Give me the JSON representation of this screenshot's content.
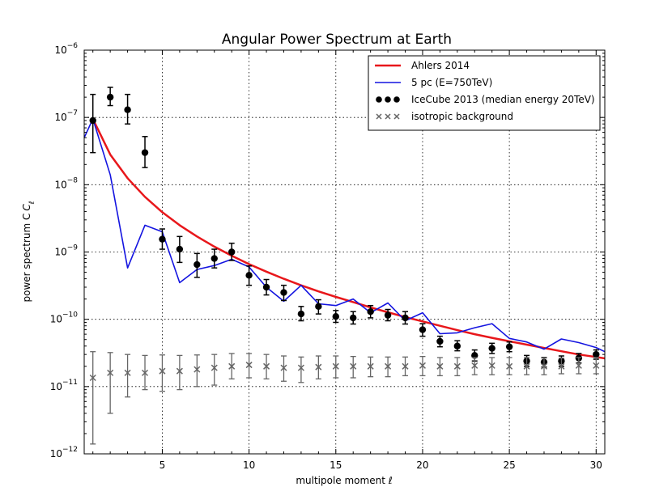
{
  "chart_data": {
    "type": "scatter",
    "title": "Angular Power Spectrum at Earth",
    "xlabel": "multipole moment ℓ",
    "ylabel": "power spectrum C",
    "ylabel_subscript": "ℓ",
    "xlim": [
      0.5,
      30.5
    ],
    "ylim_exponents": [
      -12,
      -6
    ],
    "yscale": "log",
    "grid": true,
    "legend_position": "top-right",
    "x_ticks": [
      5,
      10,
      15,
      20,
      25,
      30
    ],
    "y_tick_exponents": [
      -12,
      -11,
      -10,
      -9,
      -8,
      -7,
      -6
    ],
    "y_tick_base": "10",
    "series": [
      {
        "name": "Ahlers 2014",
        "kind": "line",
        "color": "#e8171b",
        "x": [
          1,
          2,
          3,
          4,
          5,
          6,
          7,
          8,
          9,
          10,
          11,
          12,
          13,
          14,
          15,
          16,
          17,
          18,
          19,
          20,
          21,
          22,
          23,
          24,
          25,
          26,
          27,
          28,
          29,
          30,
          30.5
        ],
        "y": [
          9.5e-08,
          2.8e-08,
          1.25e-08,
          6.6e-09,
          3.9e-09,
          2.5e-09,
          1.7e-09,
          1.2e-09,
          8.8e-10,
          6.6e-10,
          5.1e-10,
          4e-10,
          3.2e-10,
          2.6e-10,
          2.15e-10,
          1.8e-10,
          1.5e-10,
          1.27e-10,
          1.08e-10,
          9.3e-11,
          8e-11,
          6.9e-11,
          6e-11,
          5.3e-11,
          4.7e-11,
          4.2e-11,
          3.75e-11,
          3.35e-11,
          3e-11,
          2.75e-11,
          2.62e-11
        ]
      },
      {
        "name": "5 pc (E=750TeV)",
        "kind": "line",
        "color": "#1414e0",
        "x": [
          0.5,
          1,
          2,
          3,
          4,
          5,
          6,
          7,
          8,
          9,
          10,
          11,
          12,
          13,
          14,
          15,
          16,
          17,
          18,
          19,
          20,
          21,
          22,
          23,
          24,
          25,
          26,
          27,
          28,
          29,
          30,
          30.5
        ],
        "y": [
          5e-08,
          9.5e-08,
          1.4e-08,
          5.8e-10,
          2.5e-09,
          2e-09,
          3.5e-10,
          5.5e-10,
          6.3e-10,
          7.8e-10,
          6e-10,
          3e-10,
          1.85e-10,
          3.2e-10,
          1.7e-10,
          1.6e-10,
          2e-10,
          1.25e-10,
          1.75e-10,
          9.5e-11,
          1.25e-10,
          6.1e-11,
          6.3e-11,
          7.5e-11,
          8.6e-11,
          5.2e-11,
          4.6e-11,
          3.6e-11,
          5.1e-11,
          4.5e-11,
          3.8e-11,
          3.3e-11
        ]
      },
      {
        "name": "IceCube 2013 (median energy 20TeV)",
        "kind": "points_errorbars",
        "color": "#000000",
        "x": [
          1,
          2,
          3,
          4,
          5,
          6,
          7,
          8,
          9,
          10,
          11,
          12,
          13,
          14,
          15,
          16,
          17,
          18,
          19,
          20,
          21,
          22,
          23,
          24,
          25,
          26,
          27,
          28,
          29,
          30
        ],
        "y": [
          9e-08,
          2e-07,
          1.3e-07,
          3e-08,
          1.55e-09,
          1.1e-09,
          6.5e-10,
          8e-10,
          1e-09,
          4.5e-10,
          3e-10,
          2.5e-10,
          1.2e-10,
          1.55e-10,
          1.1e-10,
          1.05e-10,
          1.3e-10,
          1.15e-10,
          1.05e-10,
          7e-11,
          4.7e-11,
          4e-11,
          2.9e-11,
          3.7e-11,
          3.9e-11,
          2.4e-11,
          2.3e-11,
          2.4e-11,
          2.65e-11,
          3e-11
        ],
        "y_low": [
          3e-08,
          1.5e-07,
          8e-08,
          1.8e-08,
          1.1e-09,
          7e-10,
          4.2e-10,
          5.8e-10,
          7.5e-10,
          3.2e-10,
          2.3e-10,
          1.9e-10,
          9.5e-11,
          1.2e-10,
          9e-11,
          8.5e-11,
          1.05e-10,
          9.5e-11,
          8.5e-11,
          5.6e-11,
          3.9e-11,
          3.4e-11,
          2.4e-11,
          3.1e-11,
          3.3e-11,
          2e-11,
          1.95e-11,
          2e-11,
          2.25e-11,
          2.55e-11
        ],
        "y_high": [
          2.2e-07,
          2.8e-07,
          2.2e-07,
          5.2e-08,
          2.2e-09,
          1.7e-09,
          9.5e-10,
          1.1e-09,
          1.35e-09,
          6.2e-10,
          3.9e-10,
          3.2e-10,
          1.55e-10,
          1.95e-10,
          1.35e-10,
          1.3e-10,
          1.6e-10,
          1.4e-10,
          1.3e-10,
          8.6e-11,
          5.6e-11,
          4.8e-11,
          3.5e-11,
          4.4e-11,
          4.6e-11,
          2.9e-11,
          2.7e-11,
          2.85e-11,
          3.1e-11,
          3.5e-11
        ]
      },
      {
        "name": "isotropic background",
        "kind": "crosses_errorbars",
        "color": "#666666",
        "x": [
          1,
          2,
          3,
          4,
          5,
          6,
          7,
          8,
          9,
          10,
          11,
          12,
          13,
          14,
          15,
          16,
          17,
          18,
          19,
          20,
          21,
          22,
          23,
          24,
          25,
          26,
          27,
          28,
          29,
          30
        ],
        "y": [
          1.35e-11,
          1.6e-11,
          1.6e-11,
          1.6e-11,
          1.7e-11,
          1.7e-11,
          1.8e-11,
          1.9e-11,
          2e-11,
          2.1e-11,
          2e-11,
          1.9e-11,
          1.9e-11,
          1.95e-11,
          2e-11,
          2e-11,
          2e-11,
          2e-11,
          2e-11,
          2.05e-11,
          2e-11,
          2e-11,
          2.05e-11,
          2.05e-11,
          2e-11,
          2e-11,
          2e-11,
          2e-11,
          2.05e-11,
          2.05e-11
        ],
        "y_low": [
          1.4e-12,
          4e-12,
          7e-12,
          9e-12,
          8.5e-12,
          9e-12,
          1e-11,
          1.05e-11,
          1.3e-11,
          1.35e-11,
          1.3e-11,
          1.2e-11,
          1.15e-11,
          1.3e-11,
          1.35e-11,
          1.35e-11,
          1.4e-11,
          1.4e-11,
          1.45e-11,
          1.45e-11,
          1.45e-11,
          1.45e-11,
          1.5e-11,
          1.5e-11,
          1.5e-11,
          1.5e-11,
          1.5e-11,
          1.55e-11,
          1.55e-11,
          1.55e-11
        ],
        "y_high": [
          3.3e-11,
          3.2e-11,
          3e-11,
          2.9e-11,
          2.95e-11,
          2.9e-11,
          2.95e-11,
          3e-11,
          3.1e-11,
          3.1e-11,
          3e-11,
          2.85e-11,
          2.75e-11,
          2.85e-11,
          2.85e-11,
          2.8e-11,
          2.75e-11,
          2.75e-11,
          2.75e-11,
          2.8e-11,
          2.7e-11,
          2.7e-11,
          2.7e-11,
          2.7e-11,
          2.7e-11,
          2.7e-11,
          2.65e-11,
          2.65e-11,
          2.7e-11,
          2.7e-11
        ]
      }
    ]
  }
}
